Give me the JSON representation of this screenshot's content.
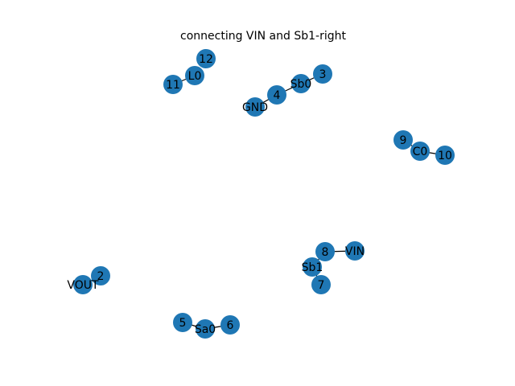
{
  "title": "connecting VIN and Sb1-right",
  "node_color": "#1f77b4",
  "graph": {
    "nodes": [
      "12",
      "L0",
      "11",
      "3",
      "Sb0",
      "4",
      "GND",
      "9",
      "C0",
      "10",
      "8",
      "VIN",
      "Sb1",
      "7",
      "2",
      "VOUT",
      "5",
      "Sa0",
      "6"
    ],
    "edges": [
      [
        "L0",
        "11"
      ],
      [
        "Sb0",
        "3"
      ],
      [
        "Sb0",
        "4"
      ],
      [
        "4",
        "GND"
      ],
      [
        "C0",
        "9"
      ],
      [
        "C0",
        "10"
      ],
      [
        "8",
        "VIN"
      ],
      [
        "Sb1",
        "8"
      ],
      [
        "Sb1",
        "7"
      ],
      [
        "2",
        "VOUT"
      ],
      [
        "Sa0",
        "5"
      ],
      [
        "Sa0",
        "6"
      ]
    ]
  }
}
